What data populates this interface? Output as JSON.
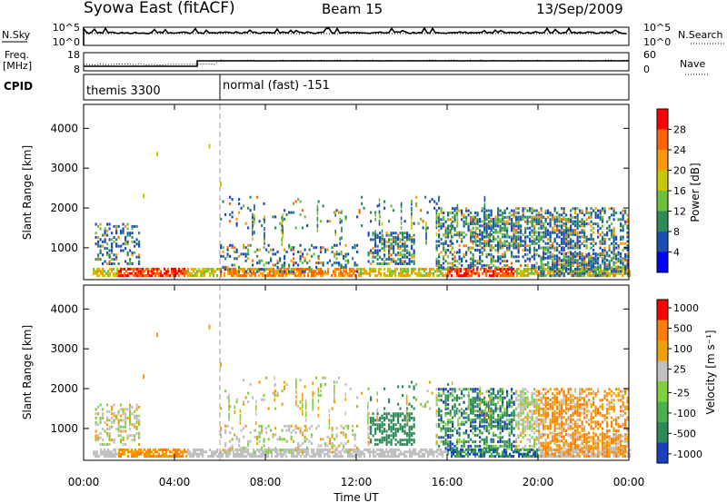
{
  "header": {
    "station": "Syowa East (fitACF)",
    "beam": "Beam 15",
    "date": "13/Sep/2009"
  },
  "nsky_panel": {
    "left_label": "N.Sky",
    "right_label": "N.Search",
    "ticks_left": [
      "10^5",
      "10^0"
    ],
    "ticks_right": [
      "10^5",
      "10^0"
    ]
  },
  "freq_panel": {
    "left_label_1": "Freq.",
    "left_label_2": "[MHz]",
    "ticks_left": [
      "18",
      "8"
    ],
    "right_label": "Nave",
    "ticks_right": [
      "60",
      "0"
    ]
  },
  "cpid_panel": {
    "label": "CPID",
    "modes": [
      {
        "name": "themis 3300",
        "start_hour": 0,
        "end_hour": 6
      },
      {
        "name": "normal (fast) -151",
        "start_hour": 6,
        "end_hour": 24
      }
    ]
  },
  "time_axis": {
    "label": "Time UT",
    "ticks": [
      "00:00",
      "04:00",
      "08:00",
      "12:00",
      "16:00",
      "20:00",
      "00:00"
    ]
  },
  "chart_data": [
    {
      "type": "heatmap",
      "title": "Power",
      "ylabel": "Slant Range [km]",
      "xlabel": "Time UT",
      "xlim": [
        0,
        24
      ],
      "ylim": [
        200,
        4600
      ],
      "yticks": [
        "1000",
        "2000",
        "3000",
        "4000"
      ],
      "colorbar": {
        "label": "Power [dB]",
        "ticks": [
          "4",
          "8",
          "12",
          "16",
          "20",
          "24",
          "28"
        ],
        "colors": [
          "#0000ff",
          "#1c4fb4",
          "#2e8b57",
          "#6fbf3f",
          "#c8c800",
          "#ff9900",
          "#ff6600",
          "#ff0000"
        ]
      }
    },
    {
      "type": "heatmap",
      "title": "Velocity",
      "ylabel": "Slant Range [km]",
      "xlabel": "Time UT",
      "xlim": [
        0,
        24
      ],
      "ylim": [
        200,
        4600
      ],
      "yticks": [
        "1000",
        "2000",
        "3000",
        "4000"
      ],
      "colorbar": {
        "label": "Velocity [m s⁻¹]",
        "ticks": [
          "1000",
          "500",
          "100",
          "25",
          "-25",
          "-100",
          "-500",
          "-1000"
        ],
        "colors": [
          "#1c3fc0",
          "#2e8b57",
          "#4caf50",
          "#7fd03f",
          "#c0c0c0",
          "#f0a000",
          "#ff7f00",
          "#ff0000"
        ]
      }
    }
  ]
}
